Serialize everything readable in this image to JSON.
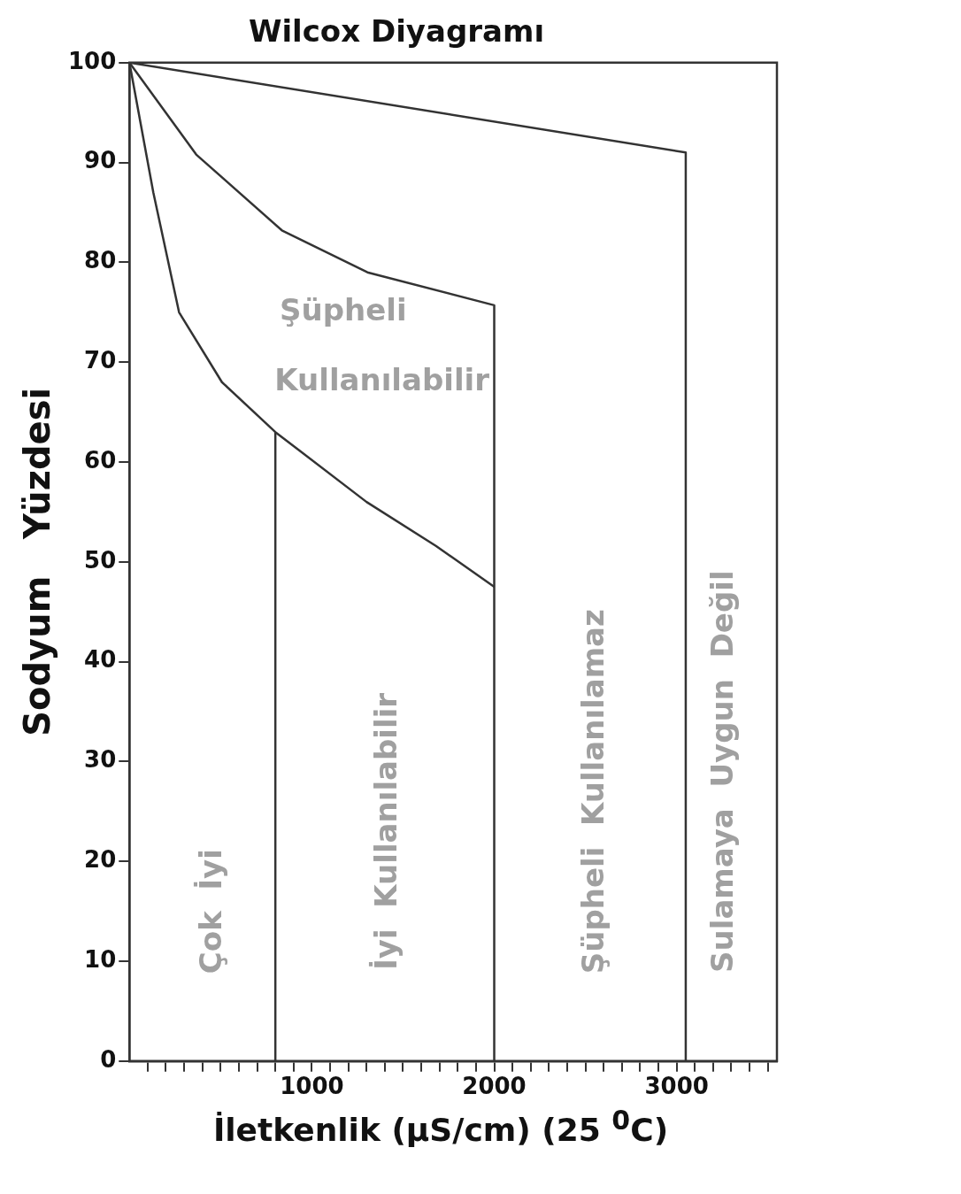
{
  "chart_data": {
    "type": "line",
    "title": "Wilcox Diyagramı",
    "xlabel": "İletkenlik   (µS/cm) (25 $^{0}$C)",
    "ylabel": "Sodyum   Yüzdesi",
    "xlim": [
      0,
      3550
    ],
    "ylim": [
      0,
      100
    ],
    "xticks": [
      {
        "value": 100,
        "label": null
      },
      {
        "value": 200,
        "label": null
      },
      {
        "value": 300,
        "label": null
      },
      {
        "value": 400,
        "label": null
      },
      {
        "value": 500,
        "label": null
      },
      {
        "value": 600,
        "label": null
      },
      {
        "value": 700,
        "label": null
      },
      {
        "value": 800,
        "label": null
      },
      {
        "value": 900,
        "label": null
      },
      1000,
      {
        "value": 1100,
        "label": null
      },
      {
        "value": 1200,
        "label": null
      },
      {
        "value": 1300,
        "label": null
      },
      {
        "value": 1400,
        "label": null
      },
      {
        "value": 1500,
        "label": null
      },
      {
        "value": 1600,
        "label": null
      },
      {
        "value": 1700,
        "label": null
      },
      {
        "value": 1800,
        "label": null
      },
      {
        "value": 1900,
        "label": null
      },
      2000,
      {
        "value": 2100,
        "label": null
      },
      {
        "value": 2200,
        "label": null
      },
      {
        "value": 2300,
        "label": null
      },
      {
        "value": 2400,
        "label": null
      },
      {
        "value": 2500,
        "label": null
      },
      {
        "value": 2600,
        "label": null
      },
      {
        "value": 2700,
        "label": null
      },
      {
        "value": 2800,
        "label": null
      },
      {
        "value": 2900,
        "label": null
      },
      3000,
      {
        "value": 3100,
        "label": null
      },
      {
        "value": 3200,
        "label": null
      },
      {
        "value": 3300,
        "label": null
      },
      {
        "value": 3400,
        "label": null
      },
      {
        "value": 3500,
        "label": null
      }
    ],
    "yticks": [
      0,
      10,
      20,
      30,
      40,
      50,
      60,
      70,
      80,
      90,
      100
    ],
    "grid": false,
    "legend": false,
    "marker": "none",
    "line_style": "solid",
    "series": [
      {
        "color": "#333333",
        "x": [
          0,
          131,
          272,
          507,
          800,
          1300,
          1680,
          2000
        ],
        "values": [
          100,
          87,
          75,
          68,
          63,
          56,
          51.6,
          47.5
        ]
      },
      {
        "color": "#333333",
        "x": [
          0,
          366,
          836,
          1305,
          2000,
          2000
        ],
        "values": [
          100,
          90.8,
          83.2,
          79,
          75.7,
          0
        ]
      },
      {
        "color": "#333333",
        "x": [
          0,
          3050,
          3050
        ],
        "values": [
          100,
          91,
          0
        ]
      },
      {
        "color": "#333333",
        "x": [
          800,
          800
        ],
        "values": [
          0,
          63
        ]
      }
    ],
    "annotations": [
      "Şüpheli",
      "Kullanılabilir",
      "Çok  İyi",
      "İyi  Kullanılabilir",
      "Şüpheli  Kullanılamaz",
      "Sulamaya  Uygun  Değil"
    ]
  }
}
